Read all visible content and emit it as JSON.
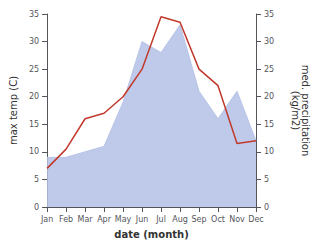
{
  "chart_data": {
    "type": "line",
    "xlabel": "date (month)",
    "ylabel": "max temp (C)",
    "y2label": "med. precipitation\n(kg/m2)",
    "categories": [
      "Jan",
      "Feb",
      "Mar",
      "Apr",
      "May",
      "Jun",
      "Jul",
      "Aug",
      "Sep",
      "Oct",
      "Nov",
      "Dec"
    ],
    "series": [
      {
        "type": "area",
        "color": "#b8c4e8",
        "axis": "y2",
        "values": [
          9,
          9,
          10,
          11,
          19,
          30,
          28,
          33,
          21,
          16,
          21,
          12
        ]
      },
      {
        "type": "line",
        "color": "#c0392b",
        "values": [
          7,
          10.5,
          16,
          17,
          20,
          25,
          34.5,
          33.5,
          25,
          22,
          11.5,
          12
        ]
      }
    ],
    "ylim": [
      0,
      35
    ],
    "yticks": [
      0,
      5,
      10,
      15,
      20,
      25,
      30,
      35
    ],
    "y2lim": [
      0,
      35
    ],
    "y2ticks": [
      0,
      5,
      10,
      15,
      20,
      25,
      30,
      35
    ],
    "grid": false
  }
}
